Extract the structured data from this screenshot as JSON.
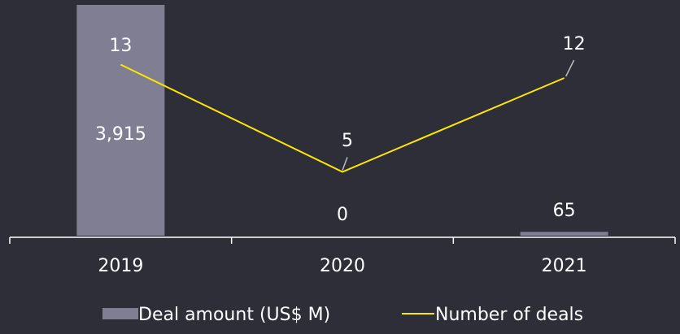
{
  "chart_data": {
    "type": "bar",
    "categories": [
      "2019",
      "2020",
      "2021"
    ],
    "series": [
      {
        "name": "Deal amount (US$ M)",
        "kind": "bar",
        "values": [
          3915,
          0,
          65
        ],
        "labels": [
          "3,915",
          "0",
          "65"
        ],
        "color": "#7f7e93"
      },
      {
        "name": "Number of deals",
        "kind": "line",
        "values": [
          13,
          5,
          12
        ],
        "labels": [
          "13",
          "5",
          "12"
        ],
        "color": "#ffe600"
      }
    ],
    "legend_position": "bottom",
    "grid": false
  }
}
